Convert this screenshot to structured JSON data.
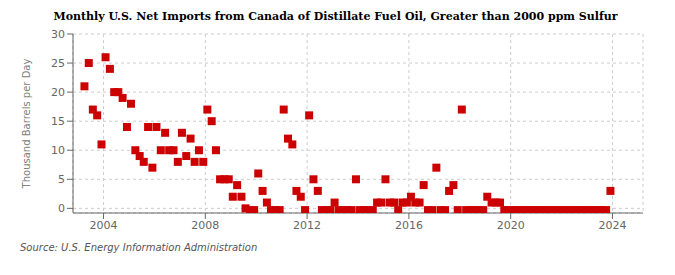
{
  "chart_data": {
    "type": "scatter",
    "title": "Monthly U.S. Net Imports from Canada of Distillate Fuel Oil, Greater than 2000 ppm Sulfur",
    "y_label": "Thousand Barrels per Day",
    "annotations": [
      "Source: U.S. Energy Information Administration"
    ],
    "color": "#cc0000",
    "marker": "square",
    "grid": true,
    "xlim": [
      2002.8,
      2025.2
    ],
    "ylim": [
      -0.8,
      30
    ],
    "xticks": [
      2004,
      2008,
      2012,
      2016,
      2020,
      2024
    ],
    "yticks": [
      0,
      5,
      10,
      15,
      20,
      25,
      30
    ],
    "x": [
      2003.25,
      2003.42,
      2003.58,
      2003.75,
      2003.92,
      2004.08,
      2004.25,
      2004.42,
      2004.58,
      2004.75,
      2004.92,
      2005.08,
      2005.25,
      2005.42,
      2005.58,
      2005.75,
      2005.92,
      2006.08,
      2006.25,
      2006.42,
      2006.58,
      2006.75,
      2006.92,
      2007.08,
      2007.25,
      2007.42,
      2007.58,
      2007.75,
      2007.92,
      2008.08,
      2008.25,
      2008.42,
      2008.58,
      2008.75,
      2008.92,
      2009.08,
      2009.25,
      2009.42,
      2009.58,
      2009.75,
      2009.92,
      2010.08,
      2010.25,
      2010.42,
      2010.58,
      2010.75,
      2010.92,
      2011.08,
      2011.25,
      2011.42,
      2011.58,
      2011.75,
      2011.92,
      2012.08,
      2012.25,
      2012.42,
      2012.58,
      2012.75,
      2012.92,
      2013.08,
      2013.25,
      2013.42,
      2013.58,
      2013.75,
      2013.92,
      2014.08,
      2014.25,
      2014.42,
      2014.58,
      2014.75,
      2014.92,
      2015.08,
      2015.25,
      2015.42,
      2015.58,
      2015.75,
      2015.92,
      2016.08,
      2016.25,
      2016.42,
      2016.58,
      2016.75,
      2016.92,
      2017.08,
      2017.25,
      2017.42,
      2017.58,
      2017.75,
      2017.92,
      2018.08,
      2018.25,
      2018.42,
      2018.58,
      2018.75,
      2018.92,
      2019.08,
      2019.25,
      2019.42,
      2019.58,
      2019.75,
      2019.92,
      2020.08,
      2020.25,
      2020.42,
      2020.58,
      2020.75,
      2020.92,
      2021.08,
      2021.25,
      2021.42,
      2021.58,
      2021.75,
      2021.92,
      2022.08,
      2022.25,
      2022.42,
      2022.58,
      2022.75,
      2022.92,
      2023.08,
      2023.25,
      2023.42,
      2023.58,
      2023.75,
      2023.92
    ],
    "values": [
      21,
      25,
      17,
      16,
      11,
      26,
      24,
      20,
      20,
      19,
      14,
      18,
      10,
      9,
      8,
      14,
      7,
      14,
      10,
      13,
      10,
      10,
      8,
      13,
      9,
      12,
      8,
      10,
      8,
      17,
      15,
      10,
      5,
      5,
      5,
      2,
      4,
      2,
      0,
      -0.3,
      -0.3,
      6,
      3,
      1,
      -0.3,
      -0.3,
      -0.3,
      17,
      12,
      11,
      3,
      2,
      -0.3,
      16,
      5,
      3,
      -0.3,
      -0.3,
      -0.3,
      1,
      -0.3,
      -0.3,
      -0.3,
      -0.3,
      5,
      -0.3,
      -0.3,
      -0.3,
      -0.3,
      1,
      1,
      5,
      1,
      1,
      -0.3,
      1,
      1,
      2,
      1,
      1,
      4,
      -0.3,
      -0.3,
      7,
      -0.3,
      -0.3,
      3,
      4,
      -0.3,
      17,
      -0.3,
      -0.3,
      -0.3,
      -0.3,
      -0.3,
      2,
      1,
      1,
      1,
      -0.3,
      -0.3,
      -0.3,
      -0.3,
      -0.3,
      -0.3,
      -0.3,
      -0.3,
      -0.3,
      -0.3,
      -0.3,
      -0.3,
      -0.3,
      -0.3,
      -0.3,
      -0.3,
      -0.3,
      -0.3,
      -0.3,
      -0.3,
      -0.3,
      -0.3,
      -0.3,
      -0.3,
      -0.3,
      3
    ]
  }
}
